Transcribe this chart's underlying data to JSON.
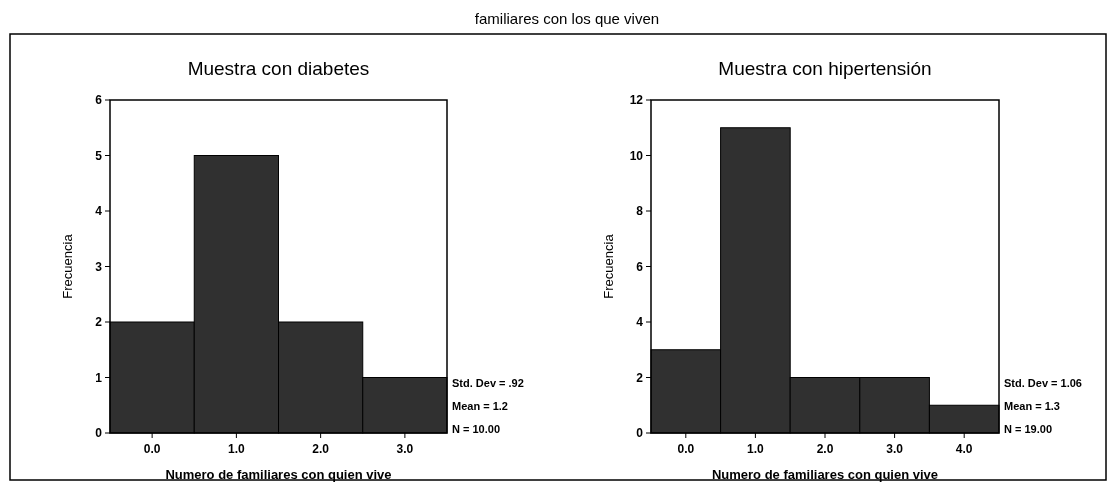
{
  "chart_data": [
    {
      "type": "histogram",
      "title": "Muestra con diabetes",
      "xlabel": "Numero de familiares con quien vive",
      "ylabel": "Frecuencia",
      "bins": [
        -0.5,
        0.5,
        1.5,
        2.5,
        3.5
      ],
      "values": [
        2,
        5,
        2,
        1
      ],
      "color": "#303030",
      "xlim": [
        -0.5,
        3.5
      ],
      "xticks": [
        {
          "value": 0,
          "label": "0.0"
        },
        {
          "value": 1,
          "label": "1.0"
        },
        {
          "value": 2,
          "label": "2.0"
        },
        {
          "value": 3,
          "label": "3.0"
        }
      ],
      "ylim": [
        0,
        6
      ],
      "yticks": [
        0,
        1,
        2,
        3,
        4,
        5,
        6
      ],
      "grid": false,
      "annotations": [
        "familiares con los que viven",
        "Std. Dev = .92",
        "Mean = 1.2",
        "N = 10.00"
      ]
    },
    {
      "type": "histogram",
      "title": "Muestra con hipertensión",
      "xlabel": "Numero de familiares con quien vive",
      "ylabel": "Frecuencia",
      "bins": [
        -0.5,
        0.5,
        1.5,
        2.5,
        3.5,
        4.5
      ],
      "values": [
        3,
        11,
        2,
        2,
        1
      ],
      "color": "#303030",
      "xlim": [
        -0.5,
        4.5
      ],
      "xticks": [
        {
          "value": 0,
          "label": "0.0"
        },
        {
          "value": 1,
          "label": "1.0"
        },
        {
          "value": 2,
          "label": "2.0"
        },
        {
          "value": 3,
          "label": "3.0"
        },
        {
          "value": 4,
          "label": "4.0"
        }
      ],
      "ylim": [
        0,
        12
      ],
      "yticks": [
        0,
        2,
        4,
        6,
        8,
        10,
        12
      ],
      "grid": false,
      "annotations": [
        "Std. Dev = 1.06",
        "Mean = 1.3",
        "N = 19.00"
      ]
    }
  ]
}
